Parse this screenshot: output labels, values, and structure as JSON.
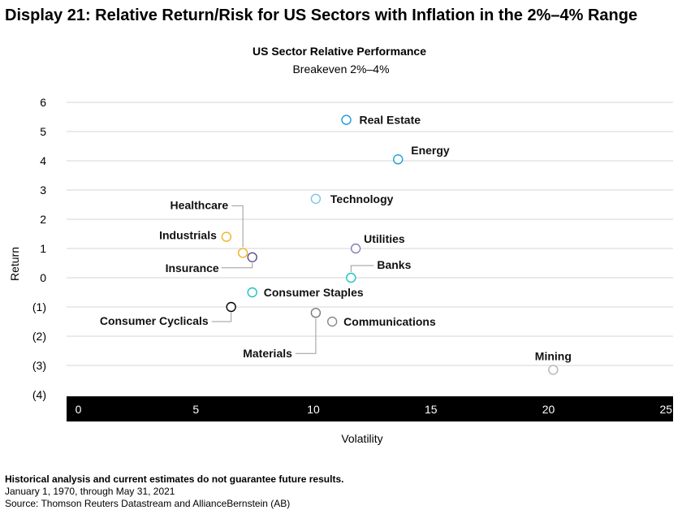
{
  "display_title": "Display 21: Relative Return/Risk for US Sectors with Inflation in the 2%–4% Range",
  "chart_data": {
    "type": "scatter",
    "title": "US Sector Relative Performance",
    "subtitle": "Breakeven 2%–4%",
    "xlabel": "Volatility",
    "ylabel": "Return",
    "xlim": [
      -0.5,
      25.3
    ],
    "ylim": [
      -4,
      6
    ],
    "x_ticks": [
      0,
      5,
      10,
      15,
      20,
      25
    ],
    "x_tick_labels": [
      "0",
      "5",
      "10",
      "15",
      "20",
      "25"
    ],
    "y_ticks": [
      6,
      5,
      4,
      3,
      2,
      1,
      0,
      -1,
      -2,
      -3,
      -4
    ],
    "y_tick_labels": [
      "6",
      "5",
      "4",
      "3",
      "2",
      "1",
      "0",
      "(1)",
      "(2)",
      "(3)",
      "(4)"
    ],
    "grid": true,
    "points": [
      {
        "label": "Real Estate",
        "x": 11.4,
        "y": 5.4,
        "color": "#1a9ed4"
      },
      {
        "label": "Energy",
        "x": 13.6,
        "y": 4.05,
        "color": "#1a9ed4"
      },
      {
        "label": "Technology",
        "x": 10.1,
        "y": 2.7,
        "color": "#7cc3ea"
      },
      {
        "label": "Industrials",
        "x": 6.3,
        "y": 1.4,
        "color": "#f0b323"
      },
      {
        "label": "Healthcare",
        "x": 7.0,
        "y": 0.85,
        "color": "#f0b323"
      },
      {
        "label": "Insurance",
        "x": 7.4,
        "y": 0.7,
        "color": "#5b4a8b"
      },
      {
        "label": "Utilities",
        "x": 11.8,
        "y": 1.0,
        "color": "#8a7bb8"
      },
      {
        "label": "Banks",
        "x": 11.6,
        "y": 0.0,
        "color": "#1cc4c4"
      },
      {
        "label": "Consumer Staples",
        "x": 7.4,
        "y": -0.5,
        "color": "#1cc4c4"
      },
      {
        "label": "Consumer Cyclicals",
        "x": 6.5,
        "y": -1.0,
        "color": "#000000"
      },
      {
        "label": "Materials",
        "x": 10.1,
        "y": -1.2,
        "color": "#7a7a7a"
      },
      {
        "label": "Communications",
        "x": 10.8,
        "y": -1.5,
        "color": "#8a8a8a"
      },
      {
        "label": "Mining",
        "x": 20.2,
        "y": -3.15,
        "color": "#b5b5b5"
      }
    ]
  },
  "footer": {
    "disclaimer": "Historical analysis and current estimates do not guarantee future results.",
    "date_range": "January 1, 1970, through May 31, 2021",
    "source": "Source: Thomson Reuters Datastream and AllianceBernstein (AB)"
  }
}
